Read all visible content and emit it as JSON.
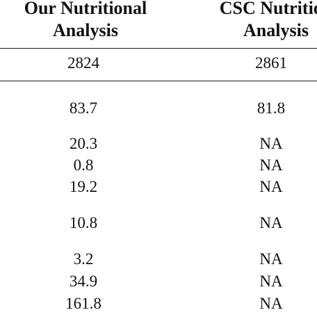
{
  "table": {
    "headers": [
      [
        "Our Nutritional",
        "Analysis"
      ],
      [
        "CSC Nutrition",
        "Analysis"
      ]
    ],
    "rows": [
      [
        "2824",
        "2861"
      ],
      [
        "83.7",
        "81.8"
      ],
      [
        "20.3",
        "NA"
      ],
      [
        "0.8",
        "NA"
      ],
      [
        "19.2",
        "NA"
      ],
      [
        "10.8",
        "NA"
      ],
      [
        "3.2",
        "NA"
      ],
      [
        "34.9",
        "NA"
      ],
      [
        "161.8",
        "NA"
      ]
    ]
  }
}
